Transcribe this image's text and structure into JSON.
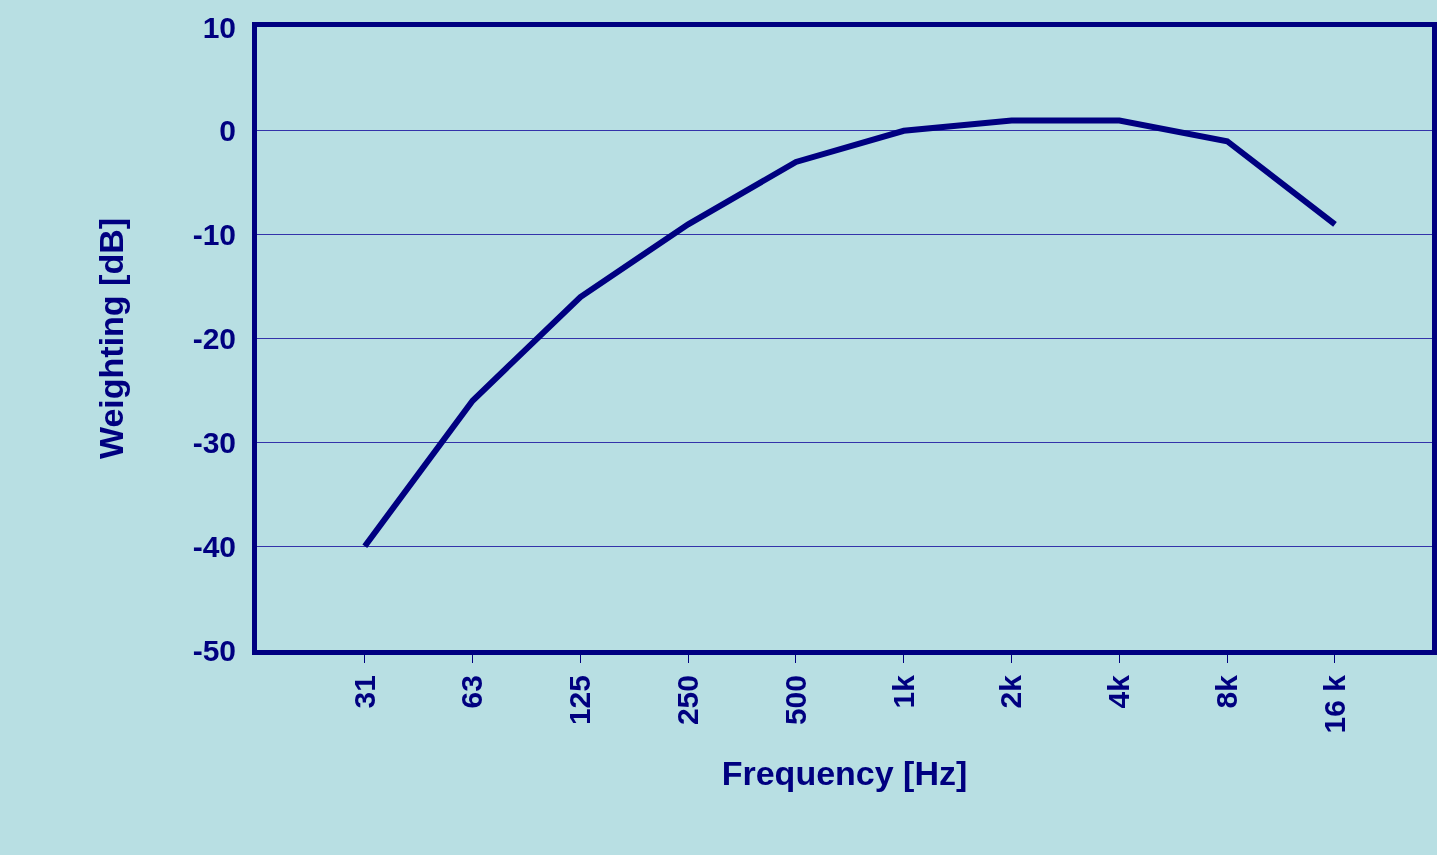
{
  "chart_data": {
    "type": "line",
    "xlabel": "Frequency [Hz]",
    "ylabel": "Weighting [dB]",
    "categories": [
      "31",
      "63",
      "125",
      "250",
      "500",
      "1k",
      "2k",
      "4k",
      "8k",
      "16 k"
    ],
    "series": [
      {
        "color": "#000080",
        "values": [
          -40,
          -26,
          -16,
          -9,
          -3,
          0,
          1,
          1,
          -1,
          -9
        ]
      }
    ],
    "ylim": [
      -50,
      10
    ],
    "yticks": [
      -50,
      -40,
      -30,
      -20,
      -10,
      0,
      10
    ],
    "grid": "y",
    "marker": "none",
    "line_style": "solid"
  }
}
